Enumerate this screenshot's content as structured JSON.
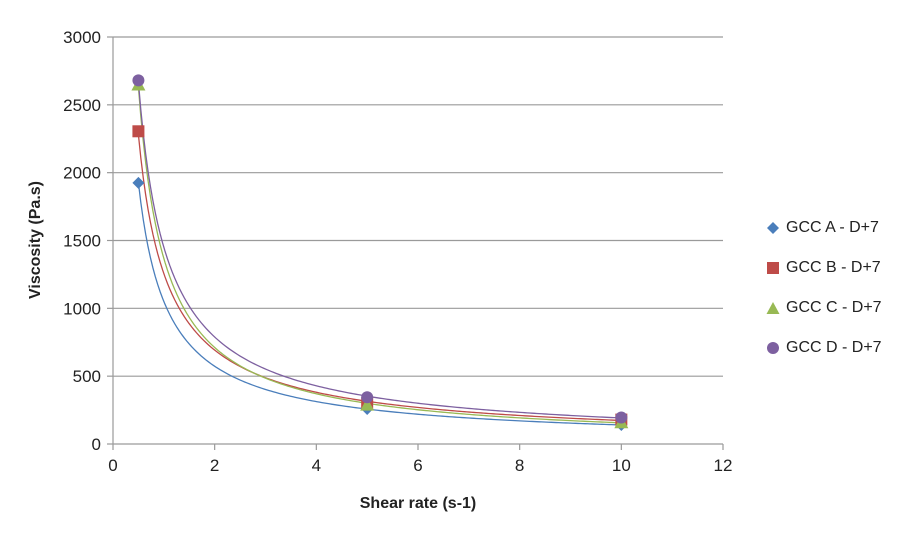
{
  "chart_data": {
    "type": "scatter",
    "title": "",
    "xlabel": "Shear rate (s-1)",
    "ylabel": "Viscosity (Pa.s)",
    "xlim": [
      0,
      12
    ],
    "ylim": [
      0,
      3000
    ],
    "xticks": [
      0,
      2,
      4,
      6,
      8,
      10,
      12
    ],
    "yticks": [
      0,
      500,
      1000,
      1500,
      2000,
      2500,
      3000
    ],
    "grid": "horizontal",
    "legend_position": "right",
    "trendline": "power",
    "series": [
      {
        "name": "GCC A - D+7",
        "marker": "diamond",
        "color": "#4a7ebb",
        "x": [
          0.5,
          5,
          10
        ],
        "y": [
          1925,
          258,
          140
        ]
      },
      {
        "name": "GCC B - D+7",
        "marker": "square",
        "color": "#be4b48",
        "x": [
          0.5,
          5,
          10
        ],
        "y": [
          2305,
          300,
          180
        ]
      },
      {
        "name": "GCC C - D+7",
        "marker": "triangle",
        "color": "#98b954",
        "x": [
          0.5,
          5,
          10
        ],
        "y": [
          2650,
          290,
          160
        ]
      },
      {
        "name": "GCC D - D+7",
        "marker": "circle",
        "color": "#7d60a0",
        "x": [
          0.5,
          5,
          10
        ],
        "y": [
          2680,
          345,
          195
        ]
      }
    ]
  },
  "legend": {
    "items": [
      {
        "label": "GCC A - D+7"
      },
      {
        "label": "GCC B - D+7"
      },
      {
        "label": "GCC C - D+7"
      },
      {
        "label": "GCC D - D+7"
      }
    ]
  },
  "axes": {
    "x_title": "Shear rate (s-1)",
    "y_title": "Viscosity (Pa.s)"
  }
}
